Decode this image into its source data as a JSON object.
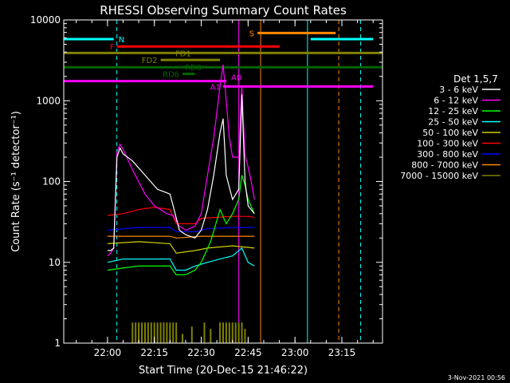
{
  "chart_data": {
    "type": "line",
    "title": "RHESSI Observing Summary Count Rates",
    "xlabel": "Start Time (20-Dec-15 21:46:22)",
    "ylabel": "Count Rate (s⁻¹ detector⁻¹)",
    "xlim": [
      "21:46",
      "23:28"
    ],
    "ylim": [
      1,
      10000
    ],
    "yscale": "log",
    "x_ticks": [
      "22:00",
      "22:15",
      "22:30",
      "22:45",
      "23:00",
      "23:15"
    ],
    "y_ticks": [
      "1",
      "10",
      "100",
      "1000",
      "10000"
    ],
    "grid": false,
    "legend": {
      "title": "Det 1,5,7",
      "placement": "right",
      "entries": [
        {
          "label": "3 - 6 keV",
          "color": "#ffffff"
        },
        {
          "label": "6 - 12 keV",
          "color": "#ff00ff"
        },
        {
          "label": "12 - 25 keV",
          "color": "#00ff00"
        },
        {
          "label": "25 - 50 keV",
          "color": "#00ffff"
        },
        {
          "label": "50 - 100 keV",
          "color": "#d0d000"
        },
        {
          "label": "100 - 300 keV",
          "color": "#ff0000"
        },
        {
          "label": "300 - 800 keV",
          "color": "#0000ff"
        },
        {
          "label": "800 - 7000 keV",
          "color": "#ff8800"
        },
        {
          "label": "7000 - 15000 keV",
          "color": "#808000"
        }
      ]
    },
    "series": [
      {
        "name": "3 - 6 keV",
        "color": "#ffffff",
        "points": [
          [
            "22:00",
            14
          ],
          [
            "22:01",
            14
          ],
          [
            "22:02",
            15
          ],
          [
            "22:03",
            200
          ],
          [
            "22:04",
            260
          ],
          [
            "22:05",
            220
          ],
          [
            "22:08",
            180
          ],
          [
            "22:12",
            120
          ],
          [
            "22:16",
            80
          ],
          [
            "22:18",
            75
          ],
          [
            "22:20",
            70
          ],
          [
            "22:21",
            50
          ],
          [
            "22:23",
            25
          ],
          [
            "22:25",
            22
          ],
          [
            "22:28",
            20
          ],
          [
            "22:30",
            25
          ],
          [
            "22:32",
            45
          ],
          [
            "22:34",
            120
          ],
          [
            "22:36",
            400
          ],
          [
            "22:37",
            600
          ],
          [
            "22:38",
            120
          ],
          [
            "22:40",
            60
          ],
          [
            "22:42",
            80
          ],
          [
            "22:43",
            1200
          ],
          [
            "22:44",
            100
          ],
          [
            "22:45",
            50
          ],
          [
            "22:47",
            40
          ]
        ]
      },
      {
        "name": "6 - 12 keV",
        "color": "#ff00ff",
        "points": [
          [
            "22:00",
            12
          ],
          [
            "22:01",
            13
          ],
          [
            "22:02",
            15
          ],
          [
            "22:03",
            230
          ],
          [
            "22:04",
            290
          ],
          [
            "22:05",
            250
          ],
          [
            "22:08",
            140
          ],
          [
            "22:12",
            70
          ],
          [
            "22:15",
            50
          ],
          [
            "22:17",
            45
          ],
          [
            "22:19",
            40
          ],
          [
            "22:21",
            38
          ],
          [
            "22:23",
            28
          ],
          [
            "22:25",
            25
          ],
          [
            "22:28",
            28
          ],
          [
            "22:30",
            40
          ],
          [
            "22:32",
            120
          ],
          [
            "22:34",
            350
          ],
          [
            "22:36",
            1500
          ],
          [
            "22:37",
            2800
          ],
          [
            "22:38",
            1000
          ],
          [
            "22:39",
            350
          ],
          [
            "22:40",
            200
          ],
          [
            "22:42",
            200
          ],
          [
            "22:43",
            1500
          ],
          [
            "22:44",
            210
          ],
          [
            "22:45",
            150
          ],
          [
            "22:46",
            100
          ],
          [
            "22:47",
            60
          ]
        ]
      },
      {
        "name": "12 - 25 keV",
        "color": "#00ff00",
        "points": [
          [
            "22:00",
            8
          ],
          [
            "22:05",
            8.5
          ],
          [
            "22:10",
            9
          ],
          [
            "22:15",
            9
          ],
          [
            "22:20",
            9
          ],
          [
            "22:22",
            7
          ],
          [
            "22:25",
            7
          ],
          [
            "22:28",
            8
          ],
          [
            "22:30",
            10
          ],
          [
            "22:33",
            18
          ],
          [
            "22:36",
            45
          ],
          [
            "22:38",
            30
          ],
          [
            "22:40",
            40
          ],
          [
            "22:42",
            60
          ],
          [
            "22:43",
            120
          ],
          [
            "22:44",
            90
          ],
          [
            "22:45",
            60
          ],
          [
            "22:47",
            40
          ]
        ]
      },
      {
        "name": "25 - 50 keV",
        "color": "#00ffff",
        "points": [
          [
            "22:00",
            10
          ],
          [
            "22:05",
            11
          ],
          [
            "22:10",
            11
          ],
          [
            "22:15",
            11
          ],
          [
            "22:20",
            11
          ],
          [
            "22:22",
            8
          ],
          [
            "22:25",
            8
          ],
          [
            "22:28",
            9
          ],
          [
            "22:32",
            10
          ],
          [
            "22:36",
            11
          ],
          [
            "22:40",
            12
          ],
          [
            "22:43",
            15
          ],
          [
            "22:45",
            10
          ],
          [
            "22:47",
            9
          ]
        ]
      },
      {
        "name": "50 - 100 keV",
        "color": "#d0d000",
        "points": [
          [
            "22:00",
            17
          ],
          [
            "22:10",
            18
          ],
          [
            "22:20",
            17
          ],
          [
            "22:22",
            13
          ],
          [
            "22:28",
            14
          ],
          [
            "22:32",
            15
          ],
          [
            "22:40",
            16
          ],
          [
            "22:47",
            15
          ]
        ]
      },
      {
        "name": "100 - 300 keV",
        "color": "#ff0000",
        "points": [
          [
            "22:00",
            38
          ],
          [
            "22:05",
            40
          ],
          [
            "22:10",
            45
          ],
          [
            "22:15",
            48
          ],
          [
            "22:20",
            45
          ],
          [
            "22:22",
            30
          ],
          [
            "22:28",
            30
          ],
          [
            "22:30",
            35
          ],
          [
            "22:35",
            36
          ],
          [
            "22:40",
            37
          ],
          [
            "22:45",
            37
          ],
          [
            "22:47",
            36
          ]
        ]
      },
      {
        "name": "300 - 800 keV",
        "color": "#0000ff",
        "points": [
          [
            "22:00",
            25
          ],
          [
            "22:10",
            27
          ],
          [
            "22:20",
            27
          ],
          [
            "22:22",
            24
          ],
          [
            "22:28",
            24
          ],
          [
            "22:32",
            26
          ],
          [
            "22:40",
            27
          ],
          [
            "22:47",
            27
          ]
        ]
      },
      {
        "name": "800 - 7000 keV",
        "color": "#ff8800",
        "points": [
          [
            "22:00",
            21
          ],
          [
            "22:10",
            21
          ],
          [
            "22:20",
            21
          ],
          [
            "22:22",
            20
          ],
          [
            "22:30",
            21
          ],
          [
            "22:40",
            21
          ],
          [
            "22:47",
            21
          ]
        ]
      }
    ],
    "bars_7000_15000": {
      "color": "#808000",
      "times": [
        "22:08",
        "22:09",
        "22:10",
        "22:11",
        "22:12",
        "22:13",
        "22:14",
        "22:15",
        "22:16",
        "22:17",
        "22:18",
        "22:19",
        "22:20",
        "22:21",
        "22:22",
        "22:24",
        "22:27",
        "22:31",
        "22:33",
        "22:36",
        "22:37",
        "22:38",
        "22:39",
        "22:40",
        "22:41",
        "22:42",
        "22:43",
        "22:44"
      ],
      "heights": [
        1.8,
        1.8,
        1.8,
        1.8,
        1.8,
        1.8,
        1.8,
        1.8,
        1.8,
        1.8,
        1.8,
        1.8,
        1.8,
        1.8,
        1.8,
        1.3,
        1.6,
        1.8,
        1.5,
        1.8,
        1.8,
        1.8,
        1.8,
        1.8,
        1.8,
        1.8,
        1.8,
        1.5
      ]
    },
    "flag_bars": [
      {
        "label": "N",
        "color": "#00ffff",
        "y": 5800,
        "segments": [
          [
            "21:46",
            "22:02"
          ],
          [
            "23:05",
            "23:25"
          ]
        ]
      },
      {
        "label": "F",
        "color": "#ff0000",
        "y": 4700,
        "segments": [
          [
            "22:03",
            "22:55"
          ]
        ]
      },
      {
        "label": "S",
        "color": "#ff8800",
        "y": 6900,
        "segments": [
          [
            "22:48",
            "23:13"
          ]
        ]
      },
      {
        "label": "FD1",
        "color": "#808000",
        "y": 3900,
        "segments": [
          [
            "21:46",
            "23:28"
          ]
        ]
      },
      {
        "label": "FD2",
        "color": "#808000",
        "y": 3200,
        "segments": [
          [
            "22:17",
            "22:36"
          ]
        ]
      },
      {
        "label": "RD0",
        "color": "#006400",
        "y": 2600,
        "segments": [
          [
            "21:46",
            "23:28"
          ]
        ]
      },
      {
        "label": "RD6",
        "color": "#006400",
        "y": 2150,
        "segments": [
          [
            "22:24",
            "22:28"
          ]
        ]
      },
      {
        "label": "A0",
        "color": "#ff00ff",
        "y": 1750,
        "segments": [
          [
            "21:46",
            "22:38"
          ]
        ]
      },
      {
        "label": "A1",
        "color": "#ff00ff",
        "y": 1500,
        "segments": [
          [
            "22:37",
            "23:25"
          ]
        ]
      }
    ],
    "vlines": [
      {
        "time": "21:46",
        "color": "#00ffff",
        "style": "solid"
      },
      {
        "time": "22:03",
        "color": "#00ffff",
        "style": "dashed"
      },
      {
        "time": "22:42",
        "color": "#ff00ff",
        "style": "solid"
      },
      {
        "time": "22:49",
        "color": "#ff8800",
        "style": "solid"
      },
      {
        "time": "23:04",
        "color": "#00ffff",
        "style": "solid"
      },
      {
        "time": "23:14",
        "color": "#ff8800",
        "style": "dashed"
      },
      {
        "time": "23:21",
        "color": "#00ffff",
        "style": "dashed"
      }
    ]
  },
  "footer": {
    "timestamp": "3-Nov-2021 00:56"
  }
}
